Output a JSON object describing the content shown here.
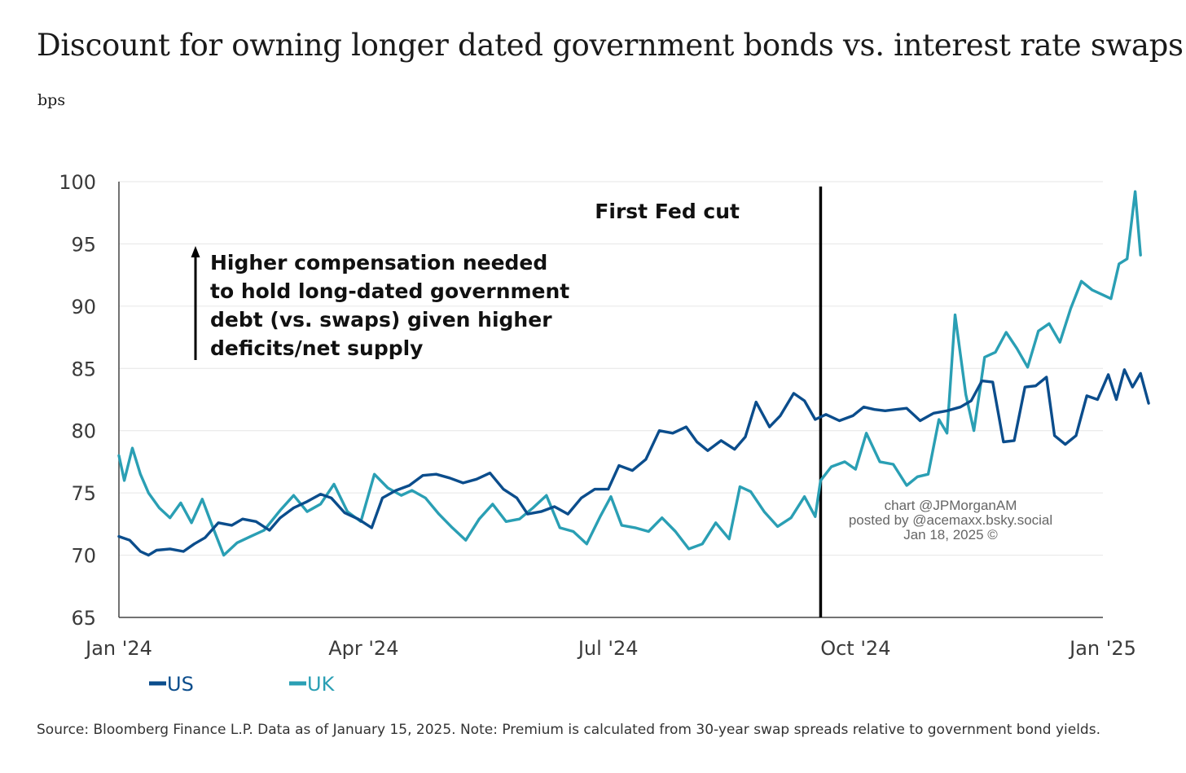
{
  "title": "Discount for owning longer dated government bonds vs. interest rate swaps",
  "subtitle": "bps",
  "source": "Source: Bloomberg Finance L.P. Data as of January 15, 2025. Note: Premium is calculated from 30-year swap spreads relative to government bond yields.",
  "annotations": {
    "fed_cut": "First Fed cut",
    "arrow_note": [
      "Higher compensation needed",
      "to hold long-dated government",
      "debt (vs. swaps) given higher",
      "deficits/net supply"
    ]
  },
  "watermark": [
    "chart @JPMorganAM",
    "posted by @acemaxx.bsky.social",
    "Jan 18, 2025 ©"
  ],
  "colors": {
    "US": "#0b4d8c",
    "UK": "#2a9fb4",
    "grid": "#e6e6e6",
    "axis": "#444444",
    "fed_line": "#000000"
  },
  "chart_data": {
    "type": "line",
    "xlabel": "",
    "ylabel": "bps",
    "ylim": [
      65,
      100
    ],
    "yticks": [
      100,
      95,
      90,
      85,
      80,
      75,
      70,
      65
    ],
    "xlim": [
      "2024-01-01",
      "2025-01-01"
    ],
    "xticks": [
      {
        "date": "2024-01-01",
        "label": "Jan '24"
      },
      {
        "date": "2024-04-01",
        "label": "Apr '24"
      },
      {
        "date": "2024-07-01",
        "label": "Jul '24"
      },
      {
        "date": "2024-10-01",
        "label": "Oct '24"
      },
      {
        "date": "2025-01-01",
        "label": "Jan '25"
      }
    ],
    "grid": "horizontal",
    "legend_position": "bottom-left",
    "event_line": {
      "date": "2024-09-18",
      "label": "First Fed cut"
    },
    "series": [
      {
        "name": "US",
        "points": [
          [
            "2024-01-01",
            71.5
          ],
          [
            "2024-01-05",
            71.2
          ],
          [
            "2024-01-09",
            70.3
          ],
          [
            "2024-01-12",
            70.0
          ],
          [
            "2024-01-15",
            70.4
          ],
          [
            "2024-01-20",
            70.5
          ],
          [
            "2024-01-25",
            70.3
          ],
          [
            "2024-01-29",
            70.9
          ],
          [
            "2024-02-02",
            71.4
          ],
          [
            "2024-02-07",
            72.6
          ],
          [
            "2024-02-12",
            72.4
          ],
          [
            "2024-02-16",
            72.9
          ],
          [
            "2024-02-21",
            72.7
          ],
          [
            "2024-02-26",
            72.0
          ],
          [
            "2024-03-01",
            73.0
          ],
          [
            "2024-03-06",
            73.8
          ],
          [
            "2024-03-11",
            74.3
          ],
          [
            "2024-03-16",
            74.9
          ],
          [
            "2024-03-20",
            74.6
          ],
          [
            "2024-03-25",
            73.4
          ],
          [
            "2024-03-30",
            72.9
          ],
          [
            "2024-04-04",
            72.2
          ],
          [
            "2024-04-08",
            74.6
          ],
          [
            "2024-04-13",
            75.2
          ],
          [
            "2024-04-18",
            75.6
          ],
          [
            "2024-04-23",
            76.4
          ],
          [
            "2024-04-28",
            76.5
          ],
          [
            "2024-05-03",
            76.2
          ],
          [
            "2024-05-08",
            75.8
          ],
          [
            "2024-05-13",
            76.1
          ],
          [
            "2024-05-18",
            76.6
          ],
          [
            "2024-05-23",
            75.3
          ],
          [
            "2024-05-28",
            74.6
          ],
          [
            "2024-06-01",
            73.3
          ],
          [
            "2024-06-06",
            73.5
          ],
          [
            "2024-06-11",
            73.9
          ],
          [
            "2024-06-16",
            73.3
          ],
          [
            "2024-06-21",
            74.6
          ],
          [
            "2024-06-26",
            75.3
          ],
          [
            "2024-07-01",
            75.3
          ],
          [
            "2024-07-05",
            77.2
          ],
          [
            "2024-07-10",
            76.8
          ],
          [
            "2024-07-15",
            77.7
          ],
          [
            "2024-07-20",
            80.0
          ],
          [
            "2024-07-25",
            79.8
          ],
          [
            "2024-07-30",
            80.3
          ],
          [
            "2024-08-03",
            79.1
          ],
          [
            "2024-08-07",
            78.4
          ],
          [
            "2024-08-12",
            79.2
          ],
          [
            "2024-08-17",
            78.5
          ],
          [
            "2024-08-21",
            79.5
          ],
          [
            "2024-08-25",
            82.3
          ],
          [
            "2024-08-30",
            80.3
          ],
          [
            "2024-09-03",
            81.2
          ],
          [
            "2024-09-08",
            83.0
          ],
          [
            "2024-09-12",
            82.4
          ],
          [
            "2024-09-16",
            80.9
          ],
          [
            "2024-09-20",
            81.3
          ],
          [
            "2024-09-25",
            80.8
          ],
          [
            "2024-09-30",
            81.2
          ],
          [
            "2024-10-04",
            81.9
          ],
          [
            "2024-10-08",
            81.7
          ],
          [
            "2024-10-12",
            81.6
          ],
          [
            "2024-10-16",
            81.7
          ],
          [
            "2024-10-20",
            81.8
          ],
          [
            "2024-10-25",
            80.8
          ],
          [
            "2024-10-30",
            81.4
          ],
          [
            "2024-11-04",
            81.6
          ],
          [
            "2024-11-09",
            81.9
          ],
          [
            "2024-11-13",
            82.4
          ],
          [
            "2024-11-17",
            84.0
          ],
          [
            "2024-11-21",
            83.9
          ],
          [
            "2024-11-25",
            79.1
          ],
          [
            "2024-11-29",
            79.2
          ],
          [
            "2024-12-03",
            83.5
          ],
          [
            "2024-12-07",
            83.6
          ],
          [
            "2024-12-11",
            84.3
          ],
          [
            "2024-12-14",
            79.6
          ],
          [
            "2024-12-18",
            78.9
          ],
          [
            "2024-12-22",
            79.6
          ],
          [
            "2024-12-26",
            82.8
          ],
          [
            "2024-12-30",
            82.5
          ],
          [
            "2025-01-03",
            84.5
          ],
          [
            "2025-01-06",
            82.5
          ],
          [
            "2025-01-09",
            84.9
          ],
          [
            "2025-01-12",
            83.5
          ],
          [
            "2025-01-15",
            84.6
          ],
          [
            "2025-01-18",
            82.2
          ]
        ]
      },
      {
        "name": "UK",
        "points": [
          [
            "2024-01-01",
            78.0
          ],
          [
            "2024-01-03",
            76.0
          ],
          [
            "2024-01-06",
            78.6
          ],
          [
            "2024-01-09",
            76.5
          ],
          [
            "2024-01-12",
            75.0
          ],
          [
            "2024-01-16",
            73.8
          ],
          [
            "2024-01-20",
            73.0
          ],
          [
            "2024-01-24",
            74.2
          ],
          [
            "2024-01-28",
            72.6
          ],
          [
            "2024-02-01",
            74.5
          ],
          [
            "2024-02-05",
            72.2
          ],
          [
            "2024-02-09",
            70.0
          ],
          [
            "2024-02-14",
            71.0
          ],
          [
            "2024-02-19",
            71.5
          ],
          [
            "2024-02-24",
            72.0
          ],
          [
            "2024-03-01",
            73.6
          ],
          [
            "2024-03-06",
            74.8
          ],
          [
            "2024-03-11",
            73.5
          ],
          [
            "2024-03-16",
            74.1
          ],
          [
            "2024-03-21",
            75.7
          ],
          [
            "2024-03-26",
            73.5
          ],
          [
            "2024-03-31",
            72.7
          ],
          [
            "2024-04-05",
            76.5
          ],
          [
            "2024-04-10",
            75.4
          ],
          [
            "2024-04-15",
            74.8
          ],
          [
            "2024-04-19",
            75.2
          ],
          [
            "2024-04-24",
            74.6
          ],
          [
            "2024-04-29",
            73.3
          ],
          [
            "2024-05-04",
            72.2
          ],
          [
            "2024-05-09",
            71.2
          ],
          [
            "2024-05-14",
            72.9
          ],
          [
            "2024-05-19",
            74.1
          ],
          [
            "2024-05-24",
            72.7
          ],
          [
            "2024-05-29",
            72.9
          ],
          [
            "2024-06-03",
            73.8
          ],
          [
            "2024-06-08",
            74.8
          ],
          [
            "2024-06-13",
            72.2
          ],
          [
            "2024-06-18",
            71.9
          ],
          [
            "2024-06-23",
            70.9
          ],
          [
            "2024-06-28",
            73.1
          ],
          [
            "2024-07-02",
            74.7
          ],
          [
            "2024-07-06",
            72.4
          ],
          [
            "2024-07-11",
            72.2
          ],
          [
            "2024-07-16",
            71.9
          ],
          [
            "2024-07-21",
            73.0
          ],
          [
            "2024-07-26",
            71.9
          ],
          [
            "2024-07-31",
            70.5
          ],
          [
            "2024-08-05",
            70.9
          ],
          [
            "2024-08-10",
            72.6
          ],
          [
            "2024-08-15",
            71.3
          ],
          [
            "2024-08-19",
            75.5
          ],
          [
            "2024-08-23",
            75.1
          ],
          [
            "2024-08-28",
            73.5
          ],
          [
            "2024-09-02",
            72.3
          ],
          [
            "2024-09-07",
            73.0
          ],
          [
            "2024-09-12",
            74.7
          ],
          [
            "2024-09-16",
            73.1
          ],
          [
            "2024-09-18",
            76.0
          ],
          [
            "2024-09-22",
            77.1
          ],
          [
            "2024-09-27",
            77.5
          ],
          [
            "2024-10-01",
            76.9
          ],
          [
            "2024-10-05",
            79.8
          ],
          [
            "2024-10-10",
            77.5
          ],
          [
            "2024-10-15",
            77.3
          ],
          [
            "2024-10-20",
            75.6
          ],
          [
            "2024-10-24",
            76.3
          ],
          [
            "2024-10-28",
            76.5
          ],
          [
            "2024-11-01",
            80.9
          ],
          [
            "2024-11-04",
            79.8
          ],
          [
            "2024-11-07",
            89.3
          ],
          [
            "2024-11-11",
            82.9
          ],
          [
            "2024-11-14",
            80.0
          ],
          [
            "2024-11-18",
            85.9
          ],
          [
            "2024-11-22",
            86.3
          ],
          [
            "2024-11-26",
            87.9
          ],
          [
            "2024-11-30",
            86.6
          ],
          [
            "2024-12-04",
            85.1
          ],
          [
            "2024-12-08",
            88.0
          ],
          [
            "2024-12-12",
            88.6
          ],
          [
            "2024-12-16",
            87.1
          ],
          [
            "2024-12-20",
            89.8
          ],
          [
            "2024-12-24",
            92.0
          ],
          [
            "2024-12-28",
            91.3
          ],
          [
            "2025-01-01",
            90.9
          ],
          [
            "2025-01-04",
            90.6
          ],
          [
            "2025-01-07",
            93.4
          ],
          [
            "2025-01-10",
            93.8
          ],
          [
            "2025-01-13",
            99.2
          ],
          [
            "2025-01-15",
            94.1
          ]
        ]
      }
    ]
  }
}
